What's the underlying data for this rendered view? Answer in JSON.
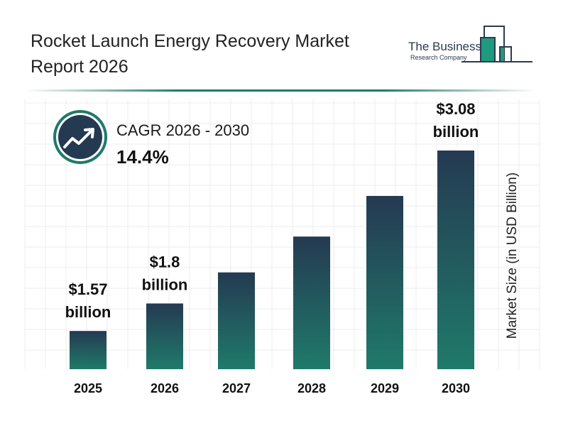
{
  "title": "Rocket Launch Energy Recovery Market Report 2026",
  "logo": {
    "line1": "The Business",
    "line2": "Research Company"
  },
  "cagr": {
    "label": "CAGR 2026 - 2030",
    "value": "14.4%",
    "icon": "trend-up-arrow-icon"
  },
  "colors": {
    "bar_top": "#253a52",
    "bar_bottom": "#1f7a6a",
    "accent": "#1f7a6a"
  },
  "chart_data": {
    "type": "bar",
    "categories": [
      "2025",
      "2026",
      "2027",
      "2028",
      "2029",
      "2030"
    ],
    "values": [
      1.57,
      1.8,
      2.06,
      2.36,
      2.7,
      3.08
    ],
    "data_labels": [
      {
        "index": 0,
        "line1": "$1.57",
        "line2": "billion"
      },
      {
        "index": 1,
        "line1": "$1.8",
        "line2": "billion"
      },
      {
        "index": 5,
        "line1": "$3.08",
        "line2": "billion"
      }
    ],
    "xlabel": "",
    "ylabel": "Market Size (in USD Billion)",
    "ylim": [
      1.25,
      3.3
    ],
    "grid": true
  }
}
